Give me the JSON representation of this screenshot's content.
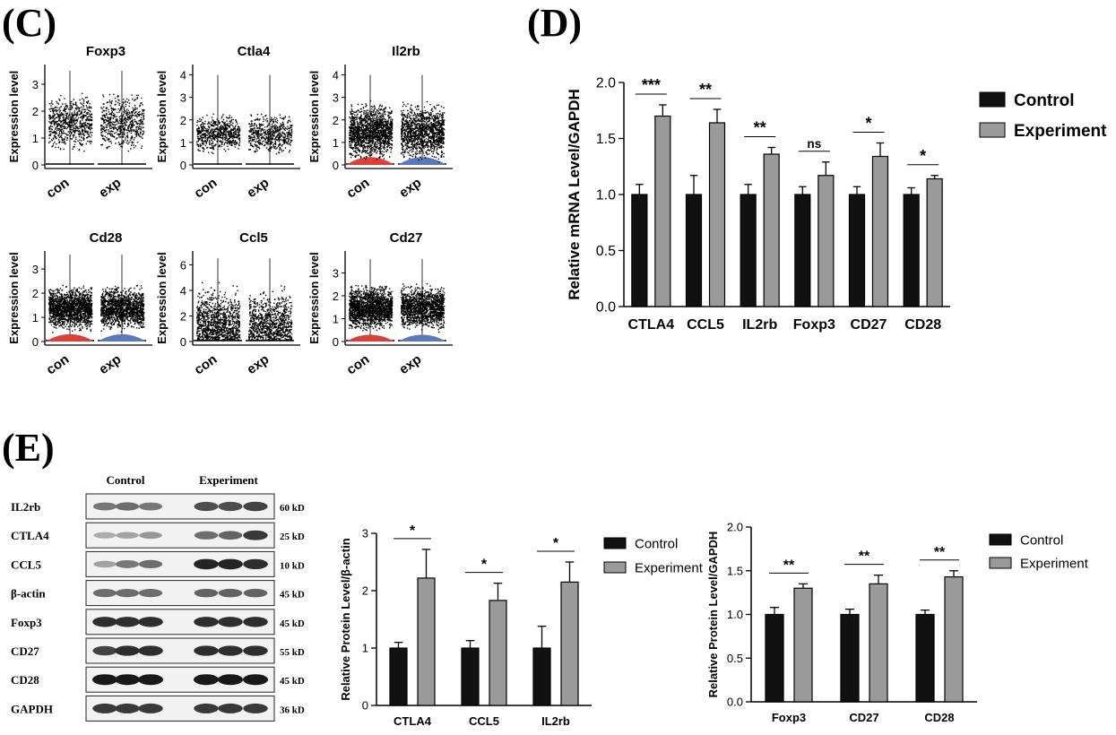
{
  "panels": {
    "C": "(C)",
    "D": "(D)",
    "E": "(E)"
  },
  "colors": {
    "control": "#111111",
    "experiment": "#9a9a9a",
    "con_violin": "#d9403a",
    "exp_violin": "#5b78b8",
    "points": "#000000"
  },
  "chart_data": [
    {
      "id": "violin-plots",
      "panel": "C",
      "type": "scatter",
      "ylabel": "Expression level",
      "groups": [
        "con",
        "exp"
      ],
      "genes": [
        {
          "name": "Foxp3",
          "ylim": [
            0,
            3.6
          ],
          "ticks": [
            0,
            1,
            2,
            3
          ],
          "center": 1.6,
          "spread": 0.6,
          "max": 3.5,
          "n": 700,
          "violin": 0
        },
        {
          "name": "Ctla4",
          "ylim": [
            0,
            4.3
          ],
          "ticks": [
            0,
            1,
            2,
            3,
            4
          ],
          "center": 1.4,
          "spread": 0.5,
          "max": 4.0,
          "n": 650,
          "violin": 0
        },
        {
          "name": "Il2rb",
          "ylim": [
            0,
            4.3
          ],
          "ticks": [
            0,
            1,
            2,
            3,
            4
          ],
          "center": 1.5,
          "spread": 0.7,
          "max": 4.0,
          "n": 1500,
          "violin": 0.35
        },
        {
          "name": "Cd28",
          "ylim": [
            0,
            3.6
          ],
          "ticks": [
            0,
            1,
            2,
            3
          ],
          "center": 1.4,
          "spread": 0.5,
          "max": 3.6,
          "n": 1700,
          "violin": 0.3
        },
        {
          "name": "Ccl5",
          "ylim": [
            0,
            6.8
          ],
          "ticks": [
            0,
            2,
            4,
            6
          ],
          "center": 1.0,
          "spread": 1.8,
          "max": 6.5,
          "n": 1400,
          "violin": 0
        },
        {
          "name": "Cd27",
          "ylim": [
            0,
            3.8
          ],
          "ticks": [
            0,
            1,
            2,
            3
          ],
          "center": 1.5,
          "spread": 0.55,
          "max": 3.6,
          "n": 1700,
          "violin": 0.3
        }
      ]
    },
    {
      "id": "mrna-bar",
      "panel": "D",
      "type": "bar",
      "ylabel": "Relative mRNA Level/GAPDH",
      "categories": [
        "CTLA4",
        "CCL5",
        "IL2rb",
        "Foxp3",
        "CD27",
        "CD28"
      ],
      "ylim": [
        0,
        2.0
      ],
      "yticks": [
        "0.0",
        "0.5",
        "1.0",
        "1.5",
        "2.0"
      ],
      "series": [
        {
          "name": "Control",
          "values": [
            1.0,
            1.0,
            1.0,
            1.0,
            1.0,
            1.0
          ],
          "errors": [
            0.09,
            0.17,
            0.09,
            0.07,
            0.07,
            0.06
          ]
        },
        {
          "name": "Experiment",
          "values": [
            1.7,
            1.64,
            1.36,
            1.17,
            1.34,
            1.14
          ],
          "errors": [
            0.1,
            0.12,
            0.06,
            0.12,
            0.12,
            0.03
          ]
        }
      ],
      "significance": [
        "***",
        "**",
        "**",
        "ns",
        "*",
        "*"
      ],
      "legend": "right"
    },
    {
      "id": "protein-bar-1",
      "panel": "E",
      "type": "bar",
      "ylabel": "Relative Protein Level/β-actin",
      "categories": [
        "CTLA4",
        "CCL5",
        "IL2rb"
      ],
      "ylim": [
        0,
        3
      ],
      "yticks": [
        "0",
        "1",
        "2",
        "3"
      ],
      "series": [
        {
          "name": "Control",
          "values": [
            1.0,
            1.0,
            1.0
          ],
          "errors": [
            0.1,
            0.13,
            0.38
          ]
        },
        {
          "name": "Experiment",
          "values": [
            2.22,
            1.83,
            2.15
          ],
          "errors": [
            0.5,
            0.3,
            0.35
          ]
        }
      ],
      "significance": [
        "*",
        "*",
        "*"
      ],
      "legend": "top-right"
    },
    {
      "id": "protein-bar-2",
      "panel": "E",
      "type": "bar",
      "ylabel": "Relative Protein Level/GAPDH",
      "categories": [
        "Foxp3",
        "CD27",
        "CD28"
      ],
      "ylim": [
        0,
        2.0
      ],
      "yticks": [
        "0.0",
        "0.5",
        "1.0",
        "1.5",
        "2.0"
      ],
      "series": [
        {
          "name": "Control",
          "values": [
            1.0,
            1.0,
            1.0
          ],
          "errors": [
            0.08,
            0.06,
            0.05
          ]
        },
        {
          "name": "Experiment",
          "values": [
            1.3,
            1.35,
            1.43
          ],
          "errors": [
            0.05,
            0.1,
            0.07
          ]
        }
      ],
      "significance": [
        "**",
        "**",
        "**"
      ],
      "legend": "top-right"
    }
  ],
  "western_blot": {
    "headers": [
      "Control",
      "Experiment"
    ],
    "rows": [
      {
        "name": "IL2rb",
        "size": "60 kD",
        "c": [
          0.55,
          0.6,
          0.55
        ],
        "e": [
          0.75,
          0.75,
          0.8
        ]
      },
      {
        "name": "CTLA4",
        "size": "25 kD",
        "c": [
          0.3,
          0.35,
          0.4
        ],
        "e": [
          0.6,
          0.65,
          0.85
        ]
      },
      {
        "name": "CCL5",
        "size": "10 kD",
        "c": [
          0.35,
          0.55,
          0.6
        ],
        "e": [
          0.95,
          0.95,
          0.9
        ]
      },
      {
        "name": "β-actin",
        "size": "45 kD",
        "c": [
          0.6,
          0.6,
          0.6
        ],
        "e": [
          0.65,
          0.65,
          0.65
        ]
      },
      {
        "name": "Foxp3",
        "size": "45 kD",
        "c": [
          0.9,
          0.9,
          0.9
        ],
        "e": [
          0.9,
          0.9,
          0.9
        ]
      },
      {
        "name": "CD27",
        "size": "55 kD",
        "c": [
          0.8,
          0.9,
          0.9
        ],
        "e": [
          0.9,
          0.9,
          0.9
        ]
      },
      {
        "name": "CD28",
        "size": "45 kD",
        "c": [
          1.0,
          1.0,
          1.0
        ],
        "e": [
          1.0,
          1.0,
          1.0
        ]
      },
      {
        "name": "GAPDH",
        "size": "36 kD",
        "c": [
          0.85,
          0.85,
          0.85
        ],
        "e": [
          0.85,
          0.85,
          0.85
        ]
      }
    ]
  }
}
